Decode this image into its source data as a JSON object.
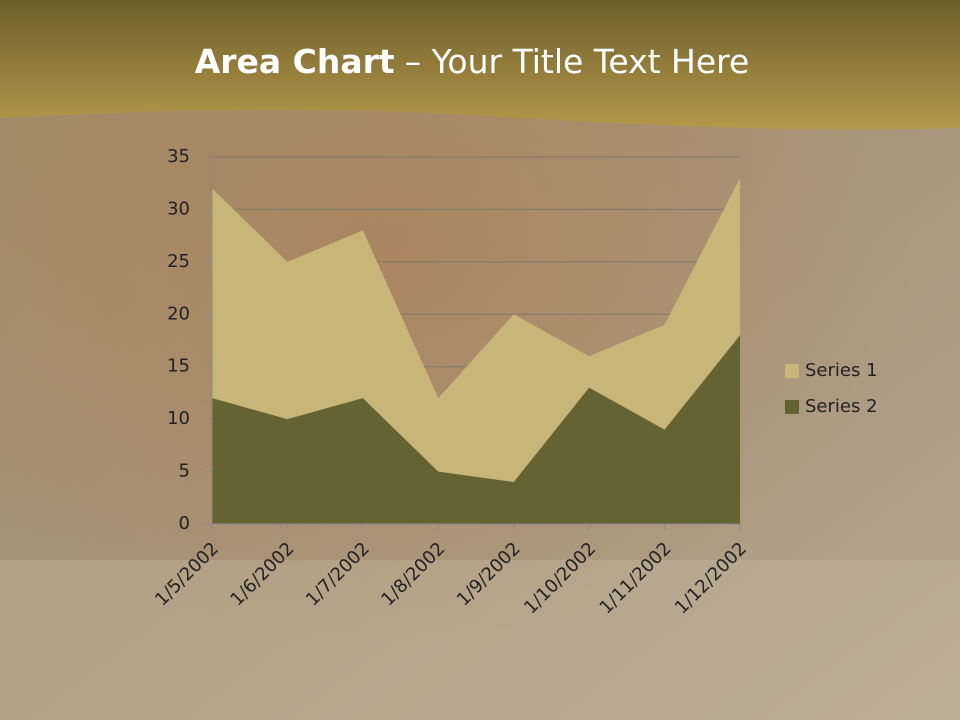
{
  "chart_data": {
    "type": "area",
    "title": {
      "bold": "Area Chart",
      "rest": "– Your Title Text Here"
    },
    "categories": [
      "1/5/2002",
      "1/6/2002",
      "1/7/2002",
      "1/8/2002",
      "1/9/2002",
      "1/10/2002",
      "1/11/2002",
      "1/12/2002"
    ],
    "series": [
      {
        "name": "Series 1",
        "color": "#c8b679",
        "values": [
          32,
          25,
          28,
          12,
          20,
          16,
          19,
          33
        ]
      },
      {
        "name": "Series 2",
        "color": "#666333",
        "values": [
          12,
          10,
          12,
          5,
          4,
          13,
          9,
          18
        ]
      }
    ],
    "ylim": [
      0,
      35
    ],
    "yticks": [
      0,
      5,
      10,
      15,
      20,
      25,
      30,
      35
    ],
    "grid": true,
    "legend": "right"
  }
}
